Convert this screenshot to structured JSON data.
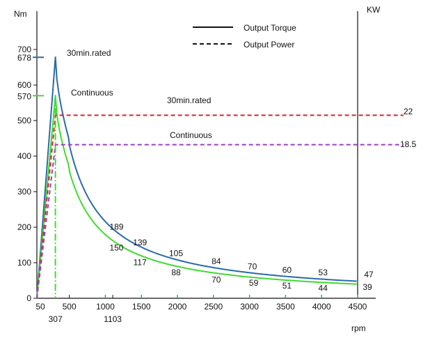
{
  "chart_data": {
    "type": "line",
    "ylabel_left": "Nm",
    "ylabel_right": "KW",
    "xlabel": "rpm",
    "xlim": [
      50,
      4500
    ],
    "ylim": [
      0,
      700
    ],
    "x_ticks": [
      "500",
      "1000",
      "1500",
      "2000",
      "2500",
      "3000",
      "3500",
      "4000",
      "4500"
    ],
    "x_ticks_extra": [
      "50",
      "307",
      "1103"
    ],
    "y_ticks": [
      "0",
      "100",
      "200",
      "300",
      "400",
      "500",
      "600",
      "700"
    ],
    "y_marks": [
      {
        "value": 678,
        "label": "678",
        "color": "#2a6aa8"
      },
      {
        "value": 570,
        "label": "570",
        "color": "#4cd14c"
      }
    ],
    "legend": {
      "torque_label": "Output Torque",
      "power_label": "Output Power"
    },
    "series": [
      {
        "name": "30min.rated",
        "style": "torque",
        "color": "#2a6aa8",
        "x": [
          50,
          307,
          1000,
          1500,
          2000,
          2500,
          3000,
          3500,
          4000,
          4500
        ],
        "y": [
          0,
          678,
          189,
          139,
          105,
          84,
          70,
          60,
          53,
          47
        ],
        "labels": [
          "189",
          "139",
          "105",
          "84",
          "70",
          "60",
          "53",
          "47"
        ]
      },
      {
        "name": "Continuous",
        "style": "torque",
        "color": "#3ddc2e",
        "x": [
          50,
          307,
          1000,
          1500,
          2000,
          2500,
          3000,
          3500,
          4000,
          4500
        ],
        "y": [
          0,
          570,
          150,
          117,
          88,
          70,
          59,
          51,
          44,
          39
        ],
        "labels": [
          "150",
          "117",
          "88",
          "70",
          "59",
          "51",
          "44",
          "39"
        ]
      },
      {
        "name": "30min.rated",
        "style": "power",
        "color": "#d3262a",
        "power_kw": "22"
      },
      {
        "name": "Continuous",
        "style": "power",
        "color": "#9b3fc0",
        "power_kw": "18.5"
      }
    ]
  }
}
